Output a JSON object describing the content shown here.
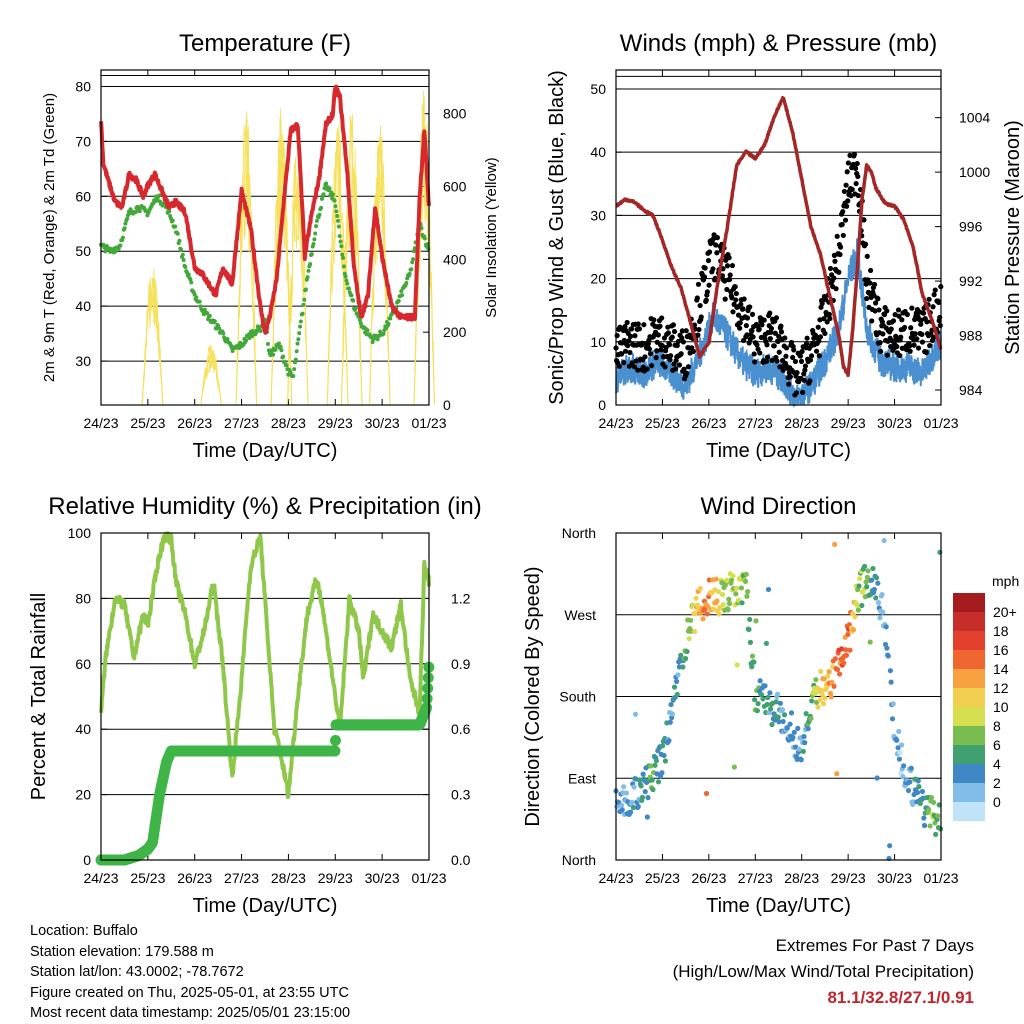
{
  "chart_data": [
    {
      "type": "line",
      "title": "Temperature (F)",
      "xlabel": "Time (Day/UTC)",
      "ylabel": "2m & 9m T (Red, Orange) & 2m Td (Green)",
      "ylabel_right": "Solar Insolation (Yellow)",
      "x_ticks": [
        "24/23",
        "25/23",
        "26/23",
        "27/23",
        "28/23",
        "29/23",
        "30/23",
        "01/23"
      ],
      "ylim": [
        22,
        83
      ],
      "y_ticks": [
        30,
        40,
        50,
        60,
        70,
        80
      ],
      "y2lim": [
        0,
        920
      ],
      "y2_ticks": [
        0,
        200,
        400,
        600,
        800
      ],
      "gridlines_y": [
        30,
        40,
        50,
        60,
        70,
        80,
        82
      ],
      "series": [
        {
          "name": "2m T",
          "color": "#d7282e",
          "axis": "left",
          "x": [
            0,
            0.05,
            0.15,
            0.3,
            0.45,
            0.6,
            0.75,
            0.9,
            1.0,
            1.15,
            1.3,
            1.45,
            1.6,
            1.8,
            2.0,
            2.15,
            2.3,
            2.45,
            2.6,
            2.8,
            3.0,
            3.2,
            3.4,
            3.5,
            3.6,
            3.75,
            3.9,
            4.05,
            4.2,
            4.35,
            4.5,
            4.65,
            4.8,
            4.95,
            5.0,
            5.1,
            5.25,
            5.4,
            5.55,
            5.7,
            5.85,
            6.0,
            6.2,
            6.4,
            6.55,
            6.7,
            6.8,
            6.9,
            7.0
          ],
          "y": [
            74,
            66,
            63,
            59,
            58,
            64,
            63,
            60,
            62,
            64,
            61,
            58,
            59,
            57,
            47,
            46,
            44,
            42,
            47,
            44,
            61,
            54,
            40,
            35,
            38,
            45,
            59,
            72,
            73,
            49,
            57,
            63,
            73,
            75,
            80,
            78,
            65,
            47,
            38,
            42,
            58,
            49,
            40,
            38,
            38,
            38,
            60,
            72,
            58
          ]
        },
        {
          "name": "Td",
          "color": "#42a83a",
          "axis": "left",
          "x": [
            0,
            0.2,
            0.4,
            0.6,
            0.8,
            1.0,
            1.2,
            1.4,
            1.6,
            1.8,
            2.0,
            2.2,
            2.4,
            2.6,
            2.8,
            3.0,
            3.2,
            3.4,
            3.5,
            3.6,
            3.8,
            4.0,
            4.1,
            4.2,
            4.4,
            4.6,
            4.8,
            5.0,
            5.2,
            5.4,
            5.6,
            5.8,
            6.0,
            6.2,
            6.4,
            6.6,
            6.8,
            7.0
          ],
          "y": [
            51,
            50,
            51,
            57,
            58,
            57,
            60,
            58,
            54,
            47,
            42,
            39,
            37,
            35,
            32,
            33,
            35,
            36,
            38,
            31,
            33,
            28,
            27,
            33,
            45,
            55,
            62,
            59,
            46,
            40,
            36,
            34,
            35,
            38,
            42,
            46,
            55,
            50
          ]
        },
        {
          "name": "Solar Insolation",
          "color": "#f6e15c",
          "axis": "right",
          "pulses": [
            [
              1.1,
              400
            ],
            [
              2.35,
              170
            ],
            [
              3.1,
              820
            ],
            [
              3.85,
              840
            ],
            [
              4.2,
              780
            ],
            [
              5.05,
              800
            ],
            [
              5.35,
              820
            ],
            [
              5.95,
              780
            ],
            [
              6.9,
              880
            ]
          ]
        }
      ]
    },
    {
      "type": "scatter",
      "title": "Winds (mph) & Pressure (mb)",
      "xlabel": "Time (Day/UTC)",
      "ylabel": "Sonic/Prop Wind & Gust (Blue, Black)",
      "ylabel_right": "Station Pressure (Maroon)",
      "x_ticks": [
        "24/23",
        "25/23",
        "26/23",
        "27/23",
        "28/23",
        "29/23",
        "30/23",
        "01/23"
      ],
      "ylim": [
        0,
        53
      ],
      "y_ticks": [
        0,
        10,
        20,
        30,
        40,
        50
      ],
      "y2lim": [
        982.9,
        1007.5
      ],
      "y2_ticks": [
        984,
        988,
        992,
        996,
        1000,
        1004
      ],
      "gridlines_y": [
        10,
        20,
        30,
        40,
        50,
        52
      ],
      "series": [
        {
          "name": "Wind",
          "color": "#4a8fd0",
          "x": [
            0,
            0.3,
            0.6,
            0.9,
            1.2,
            1.5,
            1.8,
            2.1,
            2.4,
            2.7,
            3.0,
            3.3,
            3.6,
            3.9,
            4.2,
            4.5,
            4.8,
            5.0,
            5.2,
            5.4,
            5.7,
            6.0,
            6.3,
            6.6,
            6.9,
            7.0
          ],
          "y": [
            4,
            6,
            5,
            7,
            5,
            3,
            8,
            14,
            11,
            7,
            5,
            6,
            4,
            1,
            3,
            7,
            12,
            20,
            24,
            12,
            7,
            6,
            6,
            5,
            9,
            10
          ]
        },
        {
          "name": "Gust",
          "color": "#000000",
          "x": [
            0,
            0.3,
            0.6,
            0.9,
            1.2,
            1.5,
            1.8,
            2.1,
            2.4,
            2.7,
            3.0,
            3.3,
            3.6,
            3.9,
            4.2,
            4.5,
            4.8,
            5.0,
            5.2,
            5.4,
            5.7,
            6.0,
            6.3,
            6.6,
            6.9,
            7.0
          ],
          "y": [
            8,
            10,
            9,
            11,
            9,
            8,
            16,
            24,
            20,
            15,
            10,
            11,
            9,
            4,
            8,
            14,
            24,
            35,
            38,
            20,
            12,
            11,
            12,
            11,
            15,
            16
          ]
        },
        {
          "name": "Pressure",
          "color": "#a32727",
          "axis": "right",
          "x": [
            0,
            0.2,
            0.4,
            0.6,
            0.8,
            1.0,
            1.2,
            1.4,
            1.6,
            1.8,
            2.0,
            2.2,
            2.4,
            2.6,
            2.8,
            3.0,
            3.2,
            3.4,
            3.6,
            3.8,
            4.0,
            4.2,
            4.4,
            4.6,
            4.8,
            4.9,
            5.0,
            5.1,
            5.2,
            5.3,
            5.4,
            5.5,
            5.6,
            5.8,
            6.0,
            6.2,
            6.4,
            6.6,
            6.8,
            7.0
          ],
          "y": [
            997.5,
            998,
            997.8,
            997.2,
            996.8,
            995,
            993,
            991.5,
            989,
            986.5,
            987.5,
            992,
            996,
            1000.5,
            1001.5,
            1001,
            1002,
            1004,
            1005.5,
            1003,
            999.5,
            996,
            994,
            991,
            988,
            985.7,
            985.1,
            988.5,
            993,
            998,
            1000.5,
            1000,
            998.8,
            997.7,
            997.5,
            996.5,
            994.5,
            991,
            989.2,
            987
          ]
        }
      ]
    },
    {
      "type": "line",
      "title": "Relative Humidity (%) & Precipitation (in)",
      "xlabel": "Time (Day/UTC)",
      "ylabel": "Percent & Total Rainfall",
      "x_ticks": [
        "24/23",
        "25/23",
        "26/23",
        "27/23",
        "28/23",
        "29/23",
        "30/23",
        "01/23"
      ],
      "ylim": [
        0,
        100
      ],
      "y_ticks": [
        0,
        20,
        40,
        60,
        80,
        100
      ],
      "y2lim": [
        0,
        1.5
      ],
      "y2_ticks": [
        "0.0",
        "0.3",
        "0.6",
        "0.9",
        "1.2"
      ],
      "gridlines_y": [
        20,
        40,
        60,
        80,
        100
      ],
      "series": [
        {
          "name": "RH",
          "color": "#8fc74a",
          "x": [
            0,
            0.1,
            0.3,
            0.5,
            0.7,
            0.9,
            1.0,
            1.2,
            1.35,
            1.5,
            1.6,
            1.8,
            2.0,
            2.2,
            2.4,
            2.6,
            2.8,
            3.0,
            3.1,
            3.2,
            3.4,
            3.6,
            3.7,
            3.8,
            4.0,
            4.2,
            4.4,
            4.6,
            4.7,
            4.9,
            5.1,
            5.3,
            5.5,
            5.6,
            5.8,
            6.0,
            6.2,
            6.4,
            6.6,
            6.8,
            6.9,
            7.0
          ],
          "y": [
            45,
            62,
            80,
            78,
            62,
            75,
            72,
            90,
            99,
            98,
            85,
            75,
            60,
            70,
            85,
            60,
            25,
            55,
            74,
            90,
            99,
            60,
            40,
            35,
            20,
            50,
            75,
            86,
            80,
            60,
            40,
            80,
            70,
            55,
            75,
            70,
            65,
            78,
            55,
            45,
            90,
            85
          ]
        },
        {
          "name": "Precipitation",
          "color": "#3fb548",
          "axis": "right",
          "x": [
            0,
            0.5,
            0.8,
            1.0,
            1.1,
            1.25,
            1.4,
            1.5,
            2.0,
            3.0,
            4.0,
            5.0,
            5.01,
            6.0,
            6.8,
            6.95,
            7.0
          ],
          "y": [
            0,
            0,
            0.02,
            0.05,
            0.08,
            0.3,
            0.45,
            0.5,
            0.5,
            0.5,
            0.5,
            0.5,
            0.62,
            0.62,
            0.62,
            0.7,
            0.9
          ]
        }
      ]
    },
    {
      "type": "scatter",
      "title": "Wind Direction",
      "xlabel": "Time (Day/UTC)",
      "ylabel": "Direction (Colored By Speed)",
      "x_ticks": [
        "24/23",
        "25/23",
        "26/23",
        "27/23",
        "28/23",
        "29/23",
        "30/23",
        "01/23"
      ],
      "y_ticks": [
        "North",
        "East",
        "South",
        "West",
        "North"
      ],
      "ylim": [
        0,
        360
      ],
      "colorbar": {
        "title": "mph",
        "labels": [
          "20+",
          "18",
          "16",
          "14",
          "12",
          "10",
          "8",
          "6",
          "4",
          "2",
          "0"
        ],
        "colors": [
          "#a51c20",
          "#c72e2a",
          "#e23f2d",
          "#ef6630",
          "#f8a141",
          "#f2cf50",
          "#d5df4f",
          "#79bc4f",
          "#3fa170",
          "#4087c5",
          "#81bde8",
          "#bfe3f7"
        ]
      },
      "series": [
        {
          "name": "Direction",
          "x": [
            0,
            0.2,
            0.4,
            0.6,
            0.8,
            1.0,
            1.2,
            1.4,
            1.6,
            1.8,
            2.0,
            2.2,
            2.4,
            2.6,
            2.8,
            3.0,
            3.2,
            3.4,
            3.6,
            3.8,
            4.0,
            4.2,
            4.4,
            4.6,
            4.8,
            5.0,
            5.2,
            5.4,
            5.6,
            5.8,
            6.0,
            6.2,
            6.4,
            6.6,
            6.8,
            7.0
          ],
          "y": [
            60,
            65,
            70,
            80,
            95,
            110,
            160,
            220,
            255,
            280,
            290,
            290,
            295,
            300,
            300,
            180,
            175,
            165,
            160,
            140,
            120,
            170,
            190,
            195,
            220,
            240,
            290,
            310,
            300,
            260,
            140,
            100,
            80,
            60,
            50,
            45
          ],
          "speed": [
            3,
            3,
            4,
            4,
            6,
            5,
            4,
            5,
            8,
            14,
            15,
            12,
            9,
            9,
            8,
            7,
            5,
            4,
            4,
            3,
            3,
            7,
            12,
            14,
            16,
            17,
            9,
            7,
            4,
            3,
            3,
            2,
            4,
            5,
            8,
            6
          ]
        }
      ]
    }
  ],
  "metadata_text": {
    "location": "Location: Buffalo",
    "elevation": "Station elevation: 179.588 m",
    "latlon": "Station lat/lon: 43.0002; -78.7672",
    "created": "Figure created on Thu, 2025-05-01, at 23:55 UTC",
    "recent": "Most recent data timestamp: 2025/05/01 23:15:00"
  },
  "extremes": {
    "line1": "Extremes For Past 7 Days",
    "line2": "(High/Low/Max Wind/Total Precipitation)",
    "value": "81.1/32.8/27.1/0.91",
    "value_color": "#c0262d"
  }
}
